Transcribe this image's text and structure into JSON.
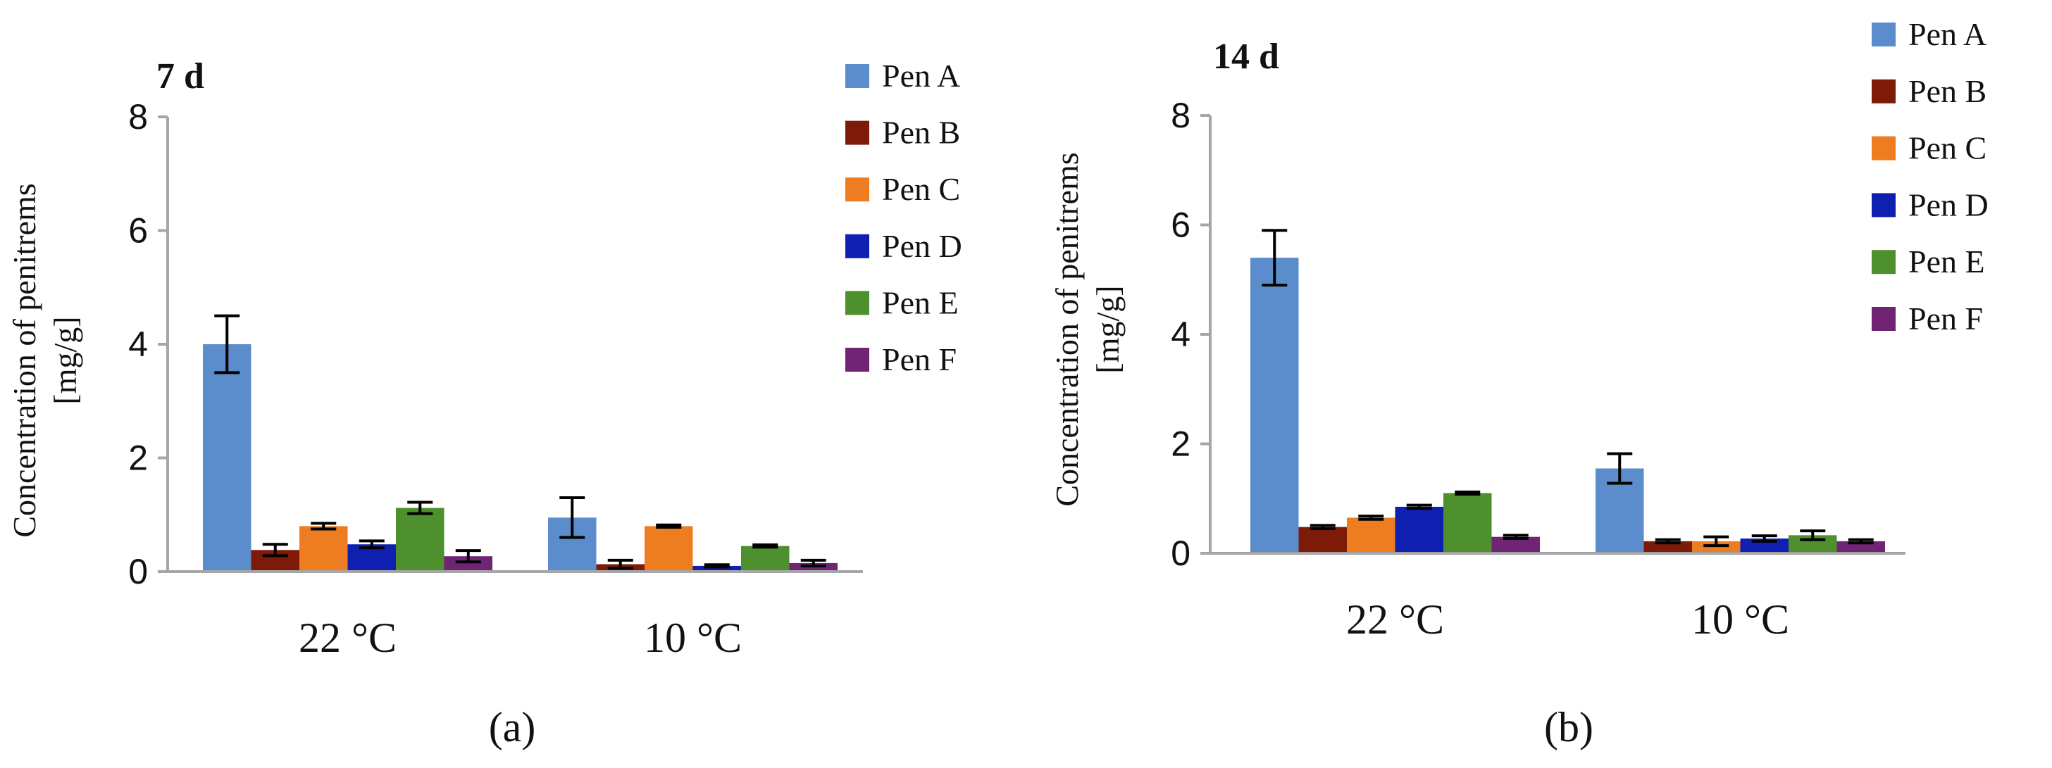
{
  "chart_data": [
    {
      "type": "bar",
      "panel": "(a)",
      "title": "7 d",
      "ylabel_line1": "Concentration of penitrems",
      "ylabel_line2": "[mg/g]",
      "ylim": [
        0,
        8
      ],
      "yticks": [
        "0",
        "2",
        "4",
        "6",
        "8"
      ],
      "categories": [
        "22 °C",
        "10 °C"
      ],
      "legend_position": "right",
      "series": [
        {
          "name": "Pen A",
          "color": "#5b8ccb",
          "values": [
            4.0,
            0.95
          ],
          "errors": [
            0.5,
            0.35
          ]
        },
        {
          "name": "Pen B",
          "color": "#7e1b08",
          "values": [
            0.38,
            0.13
          ],
          "errors": [
            0.1,
            0.07
          ]
        },
        {
          "name": "Pen C",
          "color": "#ee7d22",
          "values": [
            0.8,
            0.8
          ],
          "errors": [
            0.05,
            0.02
          ]
        },
        {
          "name": "Pen D",
          "color": "#0f20b0",
          "values": [
            0.48,
            0.1
          ],
          "errors": [
            0.06,
            0.02
          ]
        },
        {
          "name": "Pen E",
          "color": "#4e8f2e",
          "values": [
            1.12,
            0.45
          ],
          "errors": [
            0.1,
            0.02
          ]
        },
        {
          "name": "Pen F",
          "color": "#6f2474",
          "values": [
            0.27,
            0.15
          ],
          "errors": [
            0.1,
            0.05
          ]
        }
      ]
    },
    {
      "type": "bar",
      "panel": "(b)",
      "title": "14 d",
      "ylabel_line1": "Concentration of penitrems",
      "ylabel_line2": "[mg/g]",
      "ylim": [
        0,
        8
      ],
      "yticks": [
        "0",
        "2",
        "4",
        "6",
        "8"
      ],
      "categories": [
        "22 °C",
        "10 °C"
      ],
      "legend_position": "top-right",
      "series": [
        {
          "name": "Pen A",
          "color": "#5b8ccb",
          "values": [
            5.4,
            1.55
          ],
          "errors": [
            0.5,
            0.27
          ]
        },
        {
          "name": "Pen B",
          "color": "#7e1b08",
          "values": [
            0.48,
            0.22
          ],
          "errors": [
            0.03,
            0.03
          ]
        },
        {
          "name": "Pen C",
          "color": "#ee7d22",
          "values": [
            0.65,
            0.22
          ],
          "errors": [
            0.03,
            0.08
          ]
        },
        {
          "name": "Pen D",
          "color": "#0f20b0",
          "values": [
            0.85,
            0.27
          ],
          "errors": [
            0.03,
            0.05
          ]
        },
        {
          "name": "Pen E",
          "color": "#4e8f2e",
          "values": [
            1.1,
            0.33
          ],
          "errors": [
            0.02,
            0.08
          ]
        },
        {
          "name": "Pen F",
          "color": "#6f2474",
          "values": [
            0.3,
            0.22
          ],
          "errors": [
            0.03,
            0.03
          ]
        }
      ]
    }
  ]
}
